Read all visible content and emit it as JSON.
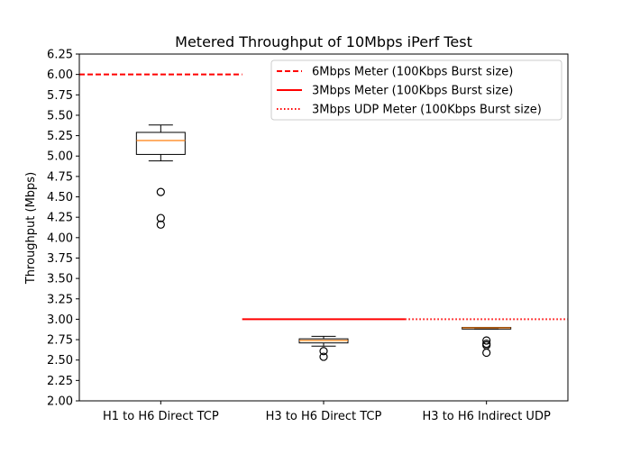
{
  "chart_data": {
    "type": "box",
    "title": "Metered Throughput of 10Mbps iPerf Test",
    "xlabel": "",
    "ylabel": "Throughput (Mbps)",
    "ylim": [
      2.0,
      6.25
    ],
    "yticks": [
      "2.00",
      "2.25",
      "2.50",
      "2.75",
      "3.00",
      "3.25",
      "3.50",
      "3.75",
      "4.00",
      "4.25",
      "4.50",
      "4.75",
      "5.00",
      "5.25",
      "5.50",
      "5.75",
      "6.00",
      "6.25"
    ],
    "grid": false,
    "legend_position": "top-right",
    "categories": [
      "H1 to H6 Direct TCP",
      "H3 to H6 Direct TCP",
      "H3 to H6 Indirect UDP"
    ],
    "boxes": [
      {
        "category": "H1 to H6 Direct TCP",
        "whisker_low": 4.94,
        "q1": 5.02,
        "median": 5.19,
        "q3": 5.29,
        "whisker_high": 5.38,
        "outliers": [
          4.56,
          4.24,
          4.16
        ]
      },
      {
        "category": "H3 to H6 Direct TCP",
        "whisker_low": 2.67,
        "q1": 2.71,
        "median": 2.74,
        "q3": 2.76,
        "whisker_high": 2.79,
        "outliers": [
          2.61,
          2.54
        ]
      },
      {
        "category": "H3 to H6 Indirect UDP",
        "whisker_low": 2.88,
        "q1": 2.88,
        "median": 2.895,
        "q3": 2.9,
        "whisker_high": 2.9,
        "outliers": [
          2.74,
          2.7,
          2.68,
          2.59
        ]
      }
    ],
    "reference_lines": [
      {
        "name": "6Mbps Meter (100Kbps Burst size)",
        "y": 6.0,
        "x_from": 0.5,
        "x_to": 1.5,
        "style": "dashed",
        "color": "#ff0000"
      },
      {
        "name": "3Mbps Meter (100Kbps Burst size)",
        "y": 3.0,
        "x_from": 1.5,
        "x_to": 2.5,
        "style": "solid",
        "color": "#ff0000"
      },
      {
        "name": "3Mbps UDP Meter (100Kbps Burst size)",
        "y": 3.0,
        "x_from": 2.5,
        "x_to": 3.5,
        "style": "dotted",
        "color": "#ff0000"
      }
    ],
    "colors": {
      "median": "#ff7f0e",
      "box": "#000000",
      "meter": "#ff0000"
    }
  }
}
